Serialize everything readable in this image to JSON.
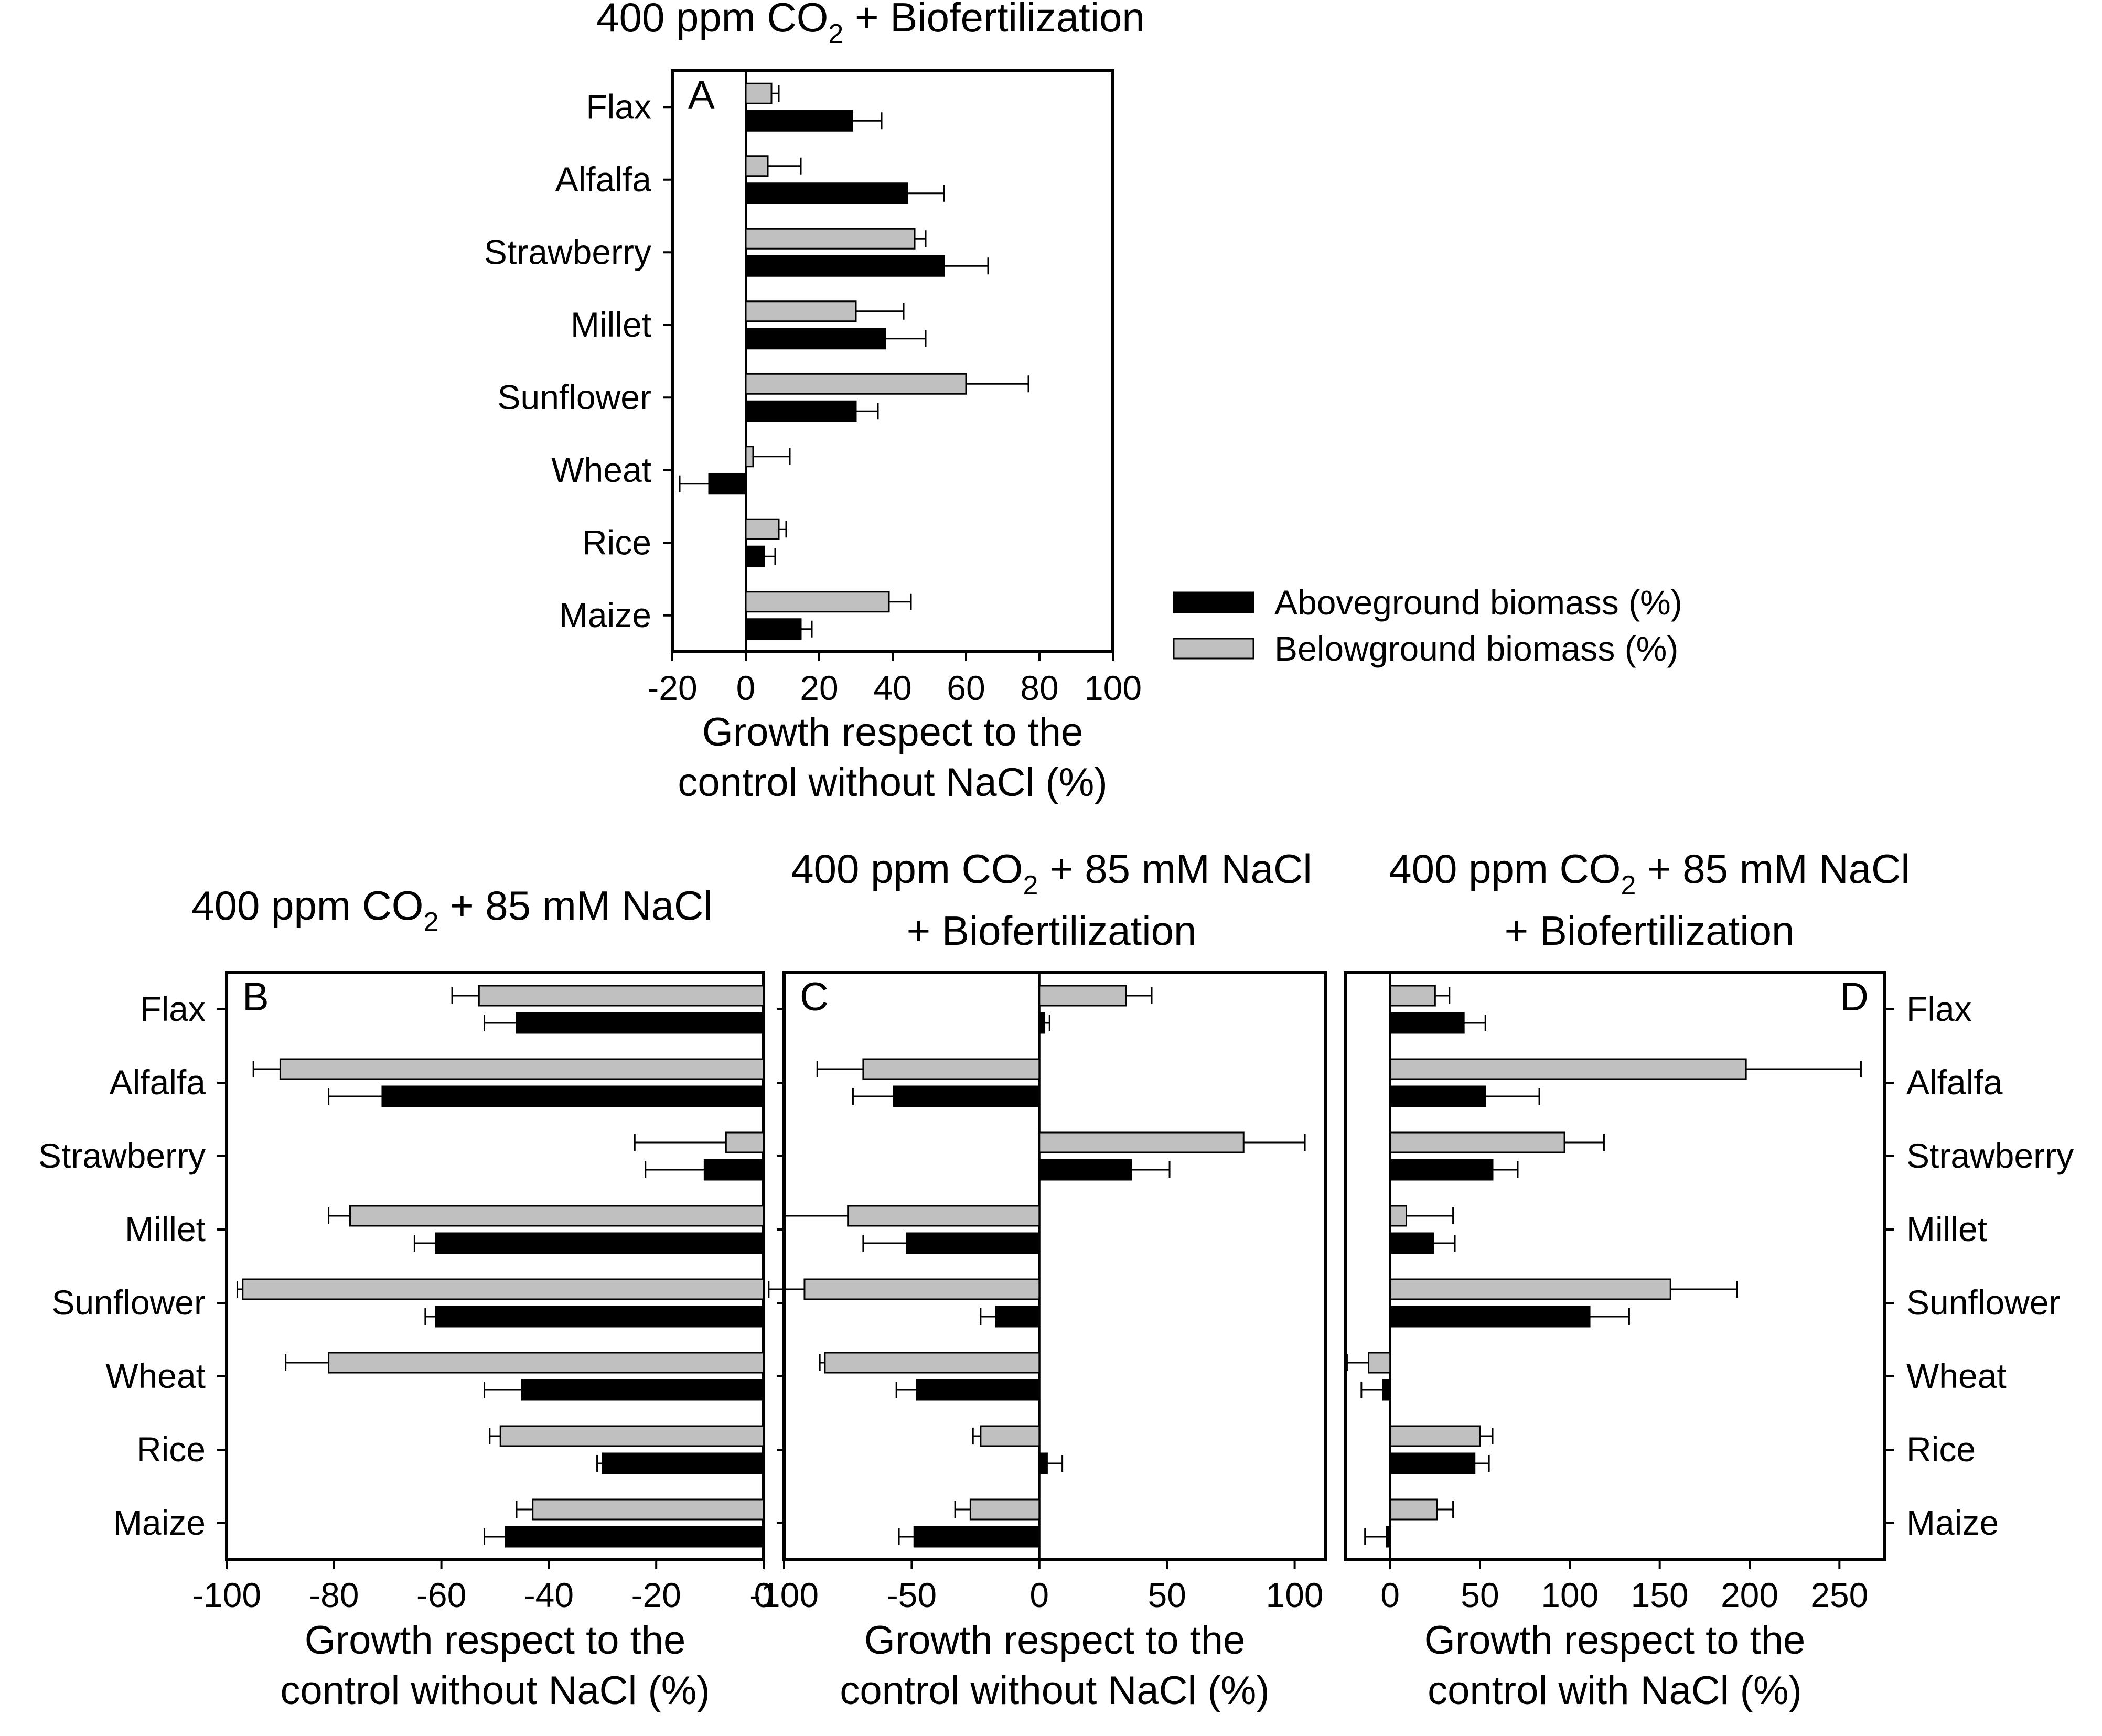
{
  "colors": {
    "aboveground": "#000000",
    "belowground": "#c0c0c0",
    "axis": "#000000",
    "background": "#ffffff"
  },
  "legend": {
    "items": [
      {
        "key": "above",
        "label": "Aboveground biomass (%)"
      },
      {
        "key": "below",
        "label": "Belowground biomass (%)"
      }
    ]
  },
  "chart_data": [
    {
      "type": "bar",
      "orientation": "horizontal",
      "panel_letter": "A",
      "title_parts": {
        "prefix": "400 ppm CO",
        "sub": "2",
        "suffix": " + Biofertilization"
      },
      "title_line2": "",
      "xlabel_lines": [
        "Growth respect to the",
        "control without NaCl (%)"
      ],
      "xlim": [
        -20,
        100
      ],
      "xticks": [
        "-20",
        "0",
        "20",
        "40",
        "60",
        "80",
        "100"
      ],
      "category_label_side": "left",
      "categories": [
        "Flax",
        "Alfalfa",
        "Strawberry",
        "Millet",
        "Sunflower",
        "Wheat",
        "Rice",
        "Maize"
      ],
      "series": [
        {
          "name": "Belowground biomass (%)",
          "key": "below",
          "values": [
            7,
            6,
            46,
            30,
            60,
            2,
            9,
            39
          ],
          "errors": [
            2,
            9,
            3,
            13,
            17,
            10,
            2,
            6
          ]
        },
        {
          "name": "Aboveground biomass (%)",
          "key": "above",
          "values": [
            29,
            44,
            54,
            38,
            30,
            -10,
            5,
            15
          ],
          "errors": [
            8,
            10,
            12,
            11,
            6,
            8,
            3,
            3
          ]
        }
      ]
    },
    {
      "type": "bar",
      "orientation": "horizontal",
      "panel_letter": "B",
      "title_parts": {
        "prefix": "400 ppm CO",
        "sub": "2",
        "suffix": " + 85 mM NaCl"
      },
      "title_line2": "",
      "xlabel_lines": [
        "Growth respect to the",
        "control without NaCl (%)"
      ],
      "xlim": [
        -100,
        0
      ],
      "xticks": [
        "-100",
        "-80",
        "-60",
        "-40",
        "-20",
        "0"
      ],
      "category_label_side": "left",
      "categories": [
        "Flax",
        "Alfalfa",
        "Strawberry",
        "Millet",
        "Sunflower",
        "Wheat",
        "Rice",
        "Maize"
      ],
      "series": [
        {
          "name": "Belowground biomass (%)",
          "key": "below",
          "values": [
            -53,
            -90,
            -7,
            -77,
            -97,
            -81,
            -49,
            -43
          ],
          "errors": [
            5,
            5,
            17,
            4,
            1,
            8,
            2,
            3
          ]
        },
        {
          "name": "Aboveground biomass (%)",
          "key": "above",
          "values": [
            -46,
            -71,
            -11,
            -61,
            -61,
            -45,
            -30,
            -48
          ],
          "errors": [
            6,
            10,
            11,
            4,
            2,
            7,
            1,
            4
          ]
        }
      ]
    },
    {
      "type": "bar",
      "orientation": "horizontal",
      "panel_letter": "C",
      "title_parts": {
        "prefix": "400 ppm CO",
        "sub": "2",
        "suffix": " + 85 mM NaCl"
      },
      "title_line2": "+ Biofertilization",
      "xlabel_lines": [
        "Growth respect to the",
        "control without NaCl (%)"
      ],
      "xlim": [
        -100,
        112
      ],
      "xticks": [
        "-100",
        "-50",
        "0",
        "50",
        "100"
      ],
      "category_label_side": "none",
      "categories": [
        "Flax",
        "Alfalfa",
        "Strawberry",
        "Millet",
        "Sunflower",
        "Wheat",
        "Rice",
        "Maize"
      ],
      "series": [
        {
          "name": "Belowground biomass (%)",
          "key": "below",
          "values": [
            34,
            -69,
            80,
            -75,
            -92,
            -84,
            -23,
            -27
          ],
          "errors": [
            10,
            18,
            24,
            25,
            14,
            2,
            3,
            6
          ]
        },
        {
          "name": "Aboveground biomass (%)",
          "key": "above",
          "values": [
            2,
            -57,
            36,
            -52,
            -17,
            -48,
            3,
            -49
          ],
          "errors": [
            2,
            16,
            15,
            17,
            6,
            8,
            6,
            6
          ]
        }
      ]
    },
    {
      "type": "bar",
      "orientation": "horizontal",
      "panel_letter": "D",
      "title_parts": {
        "prefix": "400 ppm CO",
        "sub": "2",
        "suffix": " + 85 mM NaCl"
      },
      "title_line2": "+ Biofertilization",
      "xlabel_lines": [
        "Growth respect to the",
        "control with NaCl (%)"
      ],
      "xlim": [
        -25,
        275
      ],
      "xticks": [
        "0",
        "50",
        "100",
        "150",
        "200",
        "250"
      ],
      "category_label_side": "right",
      "categories": [
        "Flax",
        "Alfalfa",
        "Strawberry",
        "Millet",
        "Sunflower",
        "Wheat",
        "Rice",
        "Maize"
      ],
      "series": [
        {
          "name": "Belowground biomass (%)",
          "key": "below",
          "values": [
            25,
            198,
            97,
            9,
            156,
            -12,
            50,
            26
          ],
          "errors": [
            8,
            64,
            22,
            26,
            37,
            12,
            7,
            9
          ]
        },
        {
          "name": "Aboveground biomass (%)",
          "key": "above",
          "values": [
            41,
            53,
            57,
            24,
            111,
            -4,
            47,
            -2
          ],
          "errors": [
            12,
            30,
            14,
            12,
            22,
            12,
            8,
            12
          ]
        }
      ]
    }
  ]
}
